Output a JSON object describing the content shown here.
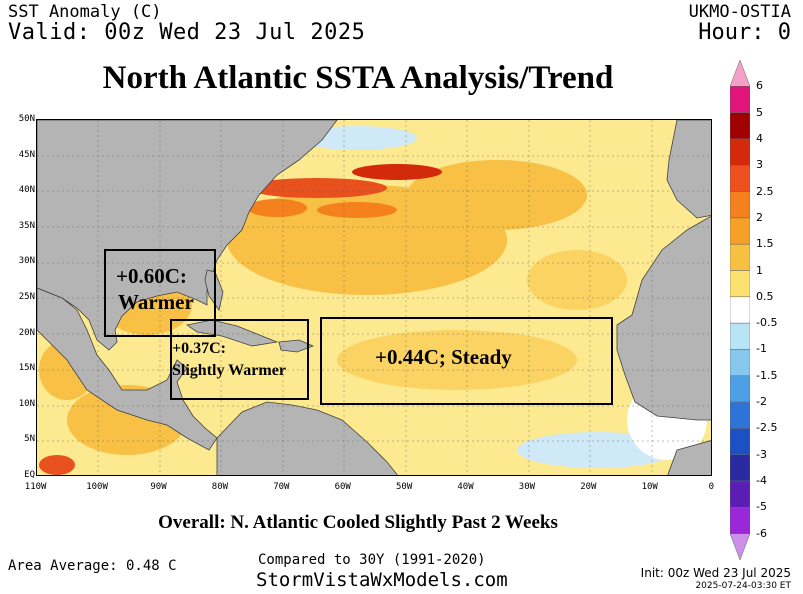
{
  "header": {
    "variable": "SST Anomaly (C)",
    "valid": "Valid: 00z Wed 23 Jul 2025",
    "model": "UKMO-OSTIA",
    "hour": "Hour: 0"
  },
  "title": "North Atlantic SSTA Analysis/Trend",
  "map": {
    "lat_labels": [
      "50N",
      "45N",
      "40N",
      "35N",
      "30N",
      "25N",
      "20N",
      "15N",
      "10N",
      "5N",
      "EQ"
    ],
    "lon_labels": [
      "110W",
      "100W",
      "90W",
      "80W",
      "70W",
      "60W",
      "50W",
      "40W",
      "30W",
      "20W",
      "10W",
      "0"
    ],
    "colors": {
      "land": "#b4b4b4",
      "ocean_base": "#fde98f",
      "warm": "#f8c044",
      "hot": "#e8501e",
      "cool": "#cfe9f6"
    }
  },
  "annotations": {
    "gulf": {
      "line1": "+0.60C:",
      "line2": "Warmer"
    },
    "caribbean": {
      "line1": "+0.37C:",
      "line2": "Slightly Warmer"
    },
    "mdr": {
      "text": "+0.44C; Steady"
    }
  },
  "colorbar": {
    "labels": [
      "6",
      "5",
      "4",
      "3",
      "2.5",
      "2",
      "1.5",
      "1",
      "0.5",
      "-0.5",
      "-1",
      "-1.5",
      "-2",
      "-2.5",
      "-3",
      "-4",
      "-5",
      "-6"
    ],
    "colors": [
      "#f4a0c8",
      "#e0147a",
      "#a00000",
      "#d22a0a",
      "#ee5020",
      "#f4801e",
      "#f6a028",
      "#f8c040",
      "#fce070",
      "#ffffff",
      "#b8e4f6",
      "#88c8ee",
      "#4ea0e6",
      "#2e74d8",
      "#1c50c4",
      "#2a2aa0",
      "#5a1eb4",
      "#9a28d8",
      "#cc90e8"
    ]
  },
  "summary": "Overall: N. Atlantic Cooled Slightly Past 2 Weeks",
  "footer": {
    "area_average": "Area Average: 0.48 C",
    "compared": "Compared to 30Y (1991-2020)",
    "site": "StormVistaWxModels.com",
    "init": "Init: 00z Wed 23 Jul 2025",
    "stamp": "2025-07-24-03:30 ET"
  }
}
